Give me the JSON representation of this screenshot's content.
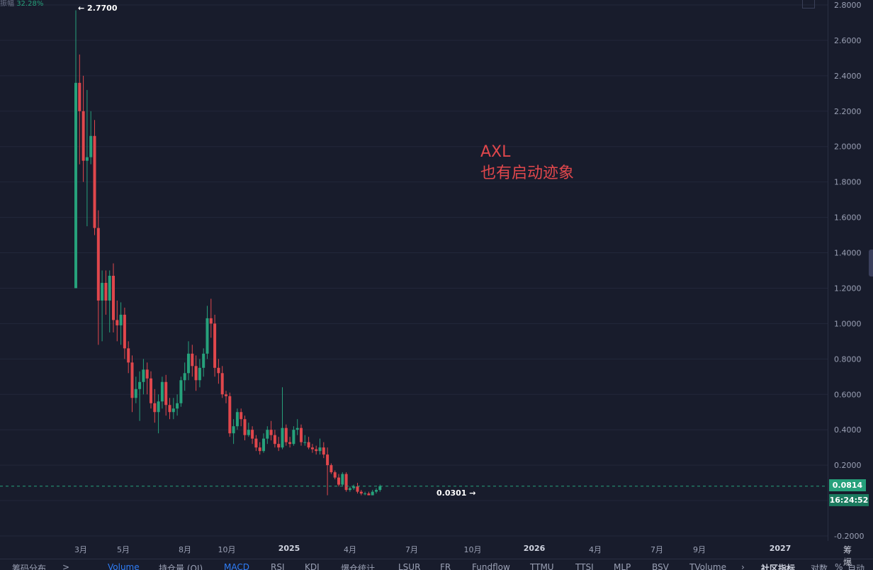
{
  "header": {
    "amplitude_label": "振幅",
    "amplitude_value": "32.28%"
  },
  "annotation": {
    "line1": "AXL",
    "line2": "也有启动迹象"
  },
  "markers": {
    "high": "← 2.7700",
    "low": "0.0301 →"
  },
  "price_tag": {
    "current": "0.0814",
    "countdown": "16:24:52"
  },
  "colors": {
    "background": "#181c2c",
    "up": "#26a17b",
    "down": "#e0474c",
    "grid": "#22273a"
  },
  "axis_mode": {
    "a": "筹",
    "b": "爆"
  },
  "indicators": {
    "chip": "筹码分布",
    "chevron": ">",
    "volume": "Volume",
    "oi": "持仓量 (OI)",
    "macd": "MACD",
    "rsi": "RSI",
    "kdj": "KDJ",
    "liq": "爆仓统计",
    "lsur": "LSUR",
    "fr": "FR",
    "fundflow": "Fundflow",
    "ttmu": "TTMU",
    "ttsi": "TTSI",
    "mlp": "MLP",
    "bsv": "BSV",
    "tvolume": "TVolume",
    "arrow": "›",
    "community": "社区指标",
    "log": "对数",
    "pct": "%",
    "auto": "自动"
  },
  "chart_data": {
    "type": "candlestick",
    "symbol": "AXL",
    "y_ticks": [
      2.8,
      2.6,
      2.4,
      2.2,
      2.0,
      1.8,
      1.6,
      1.4,
      1.2,
      1.0,
      0.8,
      0.6,
      0.4,
      0.2,
      0.0,
      -0.2
    ],
    "y_tick_labels": [
      "2.8000",
      "2.6000",
      "2.4000",
      "2.2000",
      "2.0000",
      "1.8000",
      "1.6000",
      "1.4000",
      "1.2000",
      "1.0000",
      "0.8000",
      "0.6000",
      "0.4000",
      "0.2000",
      "0.0000",
      "-0.2000"
    ],
    "ylim": [
      -0.2,
      2.8
    ],
    "x_labels": [
      "3月",
      "5月",
      "8月",
      "10月",
      "2025",
      "4月",
      "7月",
      "10月",
      "2026",
      "4月",
      "7月",
      "9月",
      "2027"
    ],
    "x_label_bold": [
      false,
      false,
      false,
      false,
      true,
      false,
      false,
      false,
      true,
      false,
      false,
      false,
      true
    ],
    "high": 2.77,
    "low": 0.0301,
    "last": 0.0814,
    "candles": [
      [
        1.2,
        2.36,
        2.77,
        1.2
      ],
      [
        2.36,
        2.2,
        2.52,
        1.9
      ],
      [
        2.2,
        1.92,
        2.4,
        1.8
      ],
      [
        1.92,
        1.94,
        2.32,
        1.55
      ],
      [
        1.94,
        2.06,
        2.2,
        1.9
      ],
      [
        2.06,
        1.54,
        2.15,
        1.5
      ],
      [
        1.54,
        1.13,
        1.64,
        0.88
      ],
      [
        1.13,
        1.23,
        1.3,
        0.9
      ],
      [
        1.23,
        1.13,
        1.3,
        1.05
      ],
      [
        1.13,
        1.27,
        1.3,
        0.95
      ],
      [
        1.27,
        1.02,
        1.34,
        0.95
      ],
      [
        1.02,
        0.99,
        1.13,
        0.9
      ],
      [
        0.99,
        1.05,
        1.12,
        0.88
      ],
      [
        1.05,
        0.86,
        1.09,
        0.8
      ],
      [
        0.86,
        0.78,
        0.9,
        0.72
      ],
      [
        0.78,
        0.58,
        0.82,
        0.5
      ],
      [
        0.58,
        0.63,
        0.7,
        0.55
      ],
      [
        0.63,
        0.67,
        0.73,
        0.45
      ],
      [
        0.67,
        0.74,
        0.8,
        0.6
      ],
      [
        0.74,
        0.69,
        0.78,
        0.6
      ],
      [
        0.69,
        0.55,
        0.73,
        0.52
      ],
      [
        0.55,
        0.5,
        0.63,
        0.44
      ],
      [
        0.5,
        0.56,
        0.6,
        0.38
      ],
      [
        0.56,
        0.67,
        0.7,
        0.52
      ],
      [
        0.67,
        0.54,
        0.71,
        0.48
      ],
      [
        0.54,
        0.5,
        0.58,
        0.46
      ],
      [
        0.5,
        0.52,
        0.58,
        0.46
      ],
      [
        0.52,
        0.55,
        0.6,
        0.48
      ],
      [
        0.55,
        0.68,
        0.7,
        0.53
      ],
      [
        0.68,
        0.72,
        0.78,
        0.62
      ],
      [
        0.72,
        0.83,
        0.9,
        0.68
      ],
      [
        0.83,
        0.76,
        0.88,
        0.7
      ],
      [
        0.76,
        0.68,
        0.82,
        0.62
      ],
      [
        0.68,
        0.75,
        0.8,
        0.64
      ],
      [
        0.75,
        0.83,
        0.86,
        0.7
      ],
      [
        0.83,
        1.03,
        1.1,
        0.8
      ],
      [
        1.03,
        1.0,
        1.14,
        0.92
      ],
      [
        1.0,
        0.75,
        1.05,
        0.7
      ],
      [
        0.75,
        0.72,
        0.8,
        0.66
      ],
      [
        0.72,
        0.6,
        0.76,
        0.58
      ],
      [
        0.6,
        0.59,
        0.62,
        0.55
      ],
      [
        0.59,
        0.38,
        0.61,
        0.36
      ],
      [
        0.38,
        0.42,
        0.46,
        0.32
      ],
      [
        0.42,
        0.5,
        0.52,
        0.4
      ],
      [
        0.5,
        0.46,
        0.52,
        0.42
      ],
      [
        0.46,
        0.37,
        0.48,
        0.34
      ],
      [
        0.37,
        0.4,
        0.44,
        0.36
      ],
      [
        0.4,
        0.35,
        0.42,
        0.32
      ],
      [
        0.35,
        0.3,
        0.37,
        0.28
      ],
      [
        0.3,
        0.28,
        0.33,
        0.26
      ],
      [
        0.28,
        0.35,
        0.38,
        0.27
      ],
      [
        0.35,
        0.4,
        0.42,
        0.32
      ],
      [
        0.4,
        0.37,
        0.45,
        0.34
      ],
      [
        0.37,
        0.32,
        0.4,
        0.3
      ],
      [
        0.32,
        0.3,
        0.36,
        0.28
      ],
      [
        0.3,
        0.41,
        0.64,
        0.29
      ],
      [
        0.41,
        0.33,
        0.43,
        0.31
      ],
      [
        0.33,
        0.32,
        0.36,
        0.3
      ],
      [
        0.32,
        0.4,
        0.42,
        0.31
      ],
      [
        0.4,
        0.41,
        0.46,
        0.37
      ],
      [
        0.41,
        0.33,
        0.43,
        0.31
      ],
      [
        0.33,
        0.33,
        0.37,
        0.31
      ],
      [
        0.33,
        0.3,
        0.36,
        0.29
      ],
      [
        0.3,
        0.29,
        0.32,
        0.27
      ],
      [
        0.29,
        0.28,
        0.31,
        0.26
      ],
      [
        0.28,
        0.3,
        0.35,
        0.26
      ],
      [
        0.3,
        0.26,
        0.33,
        0.24
      ],
      [
        0.26,
        0.2,
        0.3,
        0.03
      ],
      [
        0.2,
        0.16,
        0.21,
        0.15
      ],
      [
        0.16,
        0.13,
        0.17,
        0.12
      ],
      [
        0.13,
        0.09,
        0.15,
        0.08
      ],
      [
        0.09,
        0.15,
        0.16,
        0.08
      ],
      [
        0.15,
        0.06,
        0.16,
        0.05
      ],
      [
        0.06,
        0.07,
        0.08,
        0.05
      ],
      [
        0.07,
        0.08,
        0.09,
        0.06
      ],
      [
        0.08,
        0.05,
        0.1,
        0.04
      ],
      [
        0.05,
        0.04,
        0.06,
        0.03
      ],
      [
        0.04,
        0.04,
        0.05,
        0.03
      ],
      [
        0.04,
        0.03,
        0.05,
        0.03
      ],
      [
        0.03,
        0.05,
        0.06,
        0.03
      ],
      [
        0.05,
        0.06,
        0.07,
        0.04
      ],
      [
        0.06,
        0.0814,
        0.09,
        0.05
      ]
    ]
  }
}
